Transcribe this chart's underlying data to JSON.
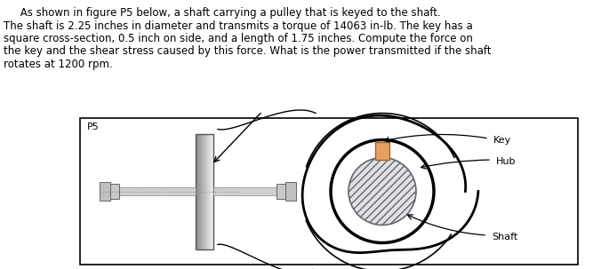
{
  "text_line1": "     As shown in figure P5 below, a shaft carrying a pulley that is keyed to the shaft.",
  "text_line2": "The shaft is 2.25 inches in diameter and transmits a torque of 14063 in-lb. The key has a",
  "text_line3": "square cross-section, 0.5 inch on side, and a length of 1.75 inches. Compute the force on",
  "text_line4": "the key and the shear stress caused by this force. What is the power transmitted if the shaft",
  "text_line5": "rotates at 1200 rpm.",
  "label_p5": "P5",
  "label_key": "Key",
  "label_hub": "Hub",
  "label_shaft": "Shaft",
  "bg_color": "#ffffff",
  "key_fill": "#e8a060",
  "key_edge": "#996633",
  "shaft_light": "#d8d8d8",
  "shaft_mid": "#b0b0b0",
  "shaft_dark": "#808080",
  "plate_light": "#d0d0d0",
  "plate_dark": "#909090",
  "hatch_color": "#888888",
  "black": "#000000"
}
